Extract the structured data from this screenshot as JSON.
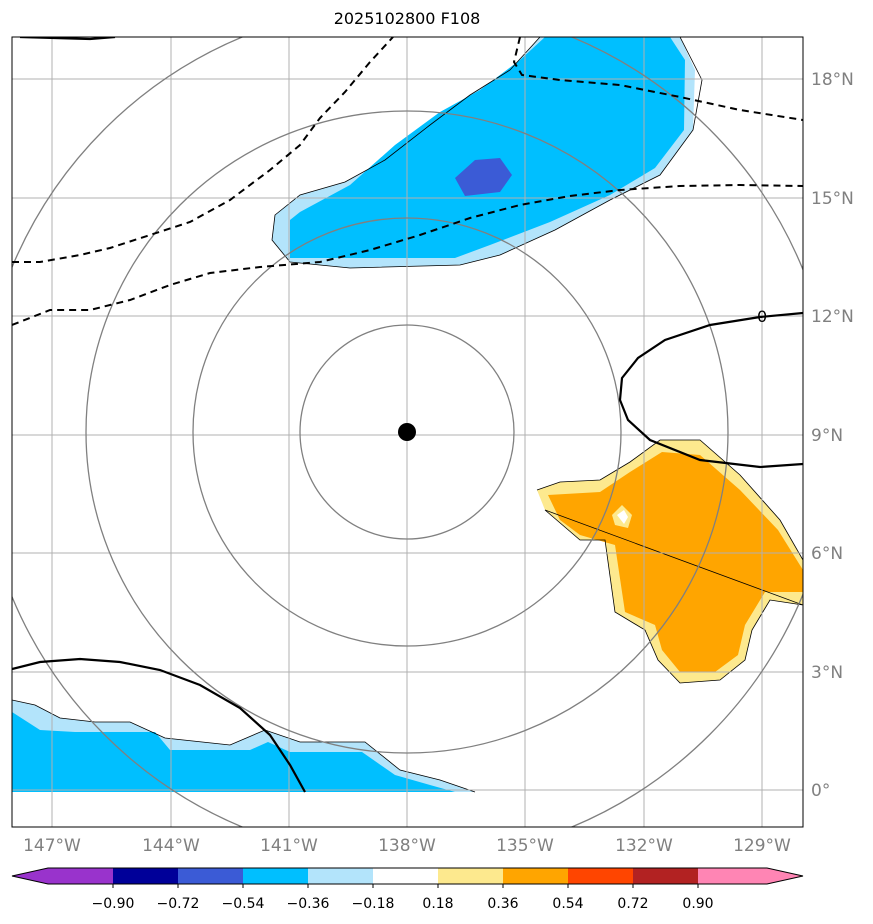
{
  "title": "2025102800 F108",
  "map": {
    "lon_ticks": [
      "147°W",
      "144°W",
      "141°W",
      "138°W",
      "135°W",
      "132°W",
      "129°W"
    ],
    "lat_ticks": [
      "18°N",
      "15°N",
      "12°N",
      "9°N",
      "6°N",
      "3°N",
      "0°"
    ],
    "center_marker": {
      "lon": "138°W",
      "lat": "9°N"
    },
    "contour_label": "0",
    "range_rings": 4,
    "colors": {
      "deep_purple": "#9933cc",
      "dark_navy": "#000099",
      "royal_blue": "#3b5bd6",
      "sky_blue": "#00bfff",
      "light_blue": "#b3e4fb",
      "white": "#ffffff",
      "light_yellow": "#fde98e",
      "orange": "#ffa500",
      "red_orange": "#ff4500",
      "dark_red": "#b22222",
      "pink": "#ff85b4"
    }
  },
  "colorbar": {
    "labels": [
      "−0.90",
      "−0.72",
      "−0.54",
      "−0.36",
      "−0.18",
      "0.18",
      "0.36",
      "0.54",
      "0.72",
      "0.90"
    ],
    "colors": [
      "#9933cc",
      "#000099",
      "#3b5bd6",
      "#00bfff",
      "#b3e4fb",
      "#ffffff",
      "#fde98e",
      "#ffa500",
      "#ff4500",
      "#b22222",
      "#ff85b4"
    ]
  }
}
